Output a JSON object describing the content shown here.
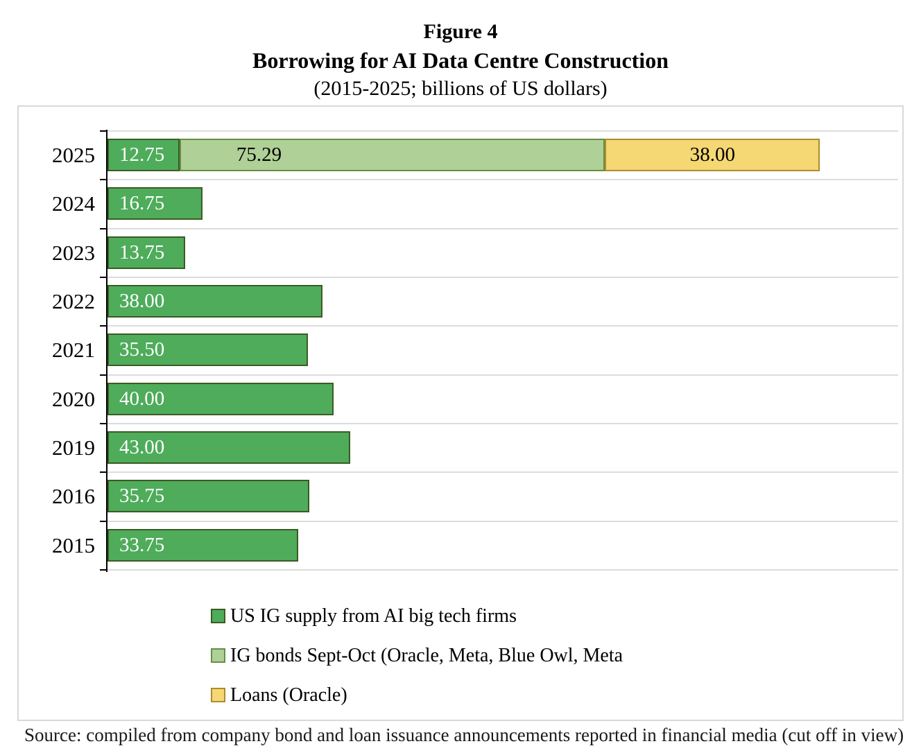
{
  "title": {
    "line1": "Figure 4",
    "line2": "Borrowing for AI Data Centre Construction",
    "line3": "(2015-2025; billions of US dollars)"
  },
  "chart_data": {
    "type": "bar",
    "orientation": "horizontal",
    "stacked": true,
    "categories": [
      "2025",
      "2024",
      "2023",
      "2022",
      "2021",
      "2020",
      "2019",
      "2016",
      "2015"
    ],
    "series": [
      {
        "name": "US IG supply from AI big tech firms",
        "color": "#4EAC5B",
        "border_color": "#3B5B23",
        "label_color": "#ffffff",
        "values": [
          12.75,
          16.75,
          13.75,
          38.0,
          35.5,
          40.0,
          43.0,
          35.75,
          33.75
        ]
      },
      {
        "name": "IG bonds Sept-Oct (Oracle, Meta, Blue Owl, Meta",
        "color": "#AFD096",
        "border_color": "#668E47",
        "label_color": "#000000",
        "values": [
          75.29,
          0,
          0,
          0,
          0,
          0,
          0,
          0,
          0
        ]
      },
      {
        "name": "Loans (Oracle)",
        "color": "#F5D773",
        "border_color": "#AD8C2D",
        "label_color": "#000000",
        "values": [
          38.0,
          0,
          0,
          0,
          0,
          0,
          0,
          0,
          0
        ]
      }
    ],
    "value_label_format": "0.00",
    "xlim": [
      0,
      140
    ],
    "gridlines": true,
    "legend_position": "bottom-left",
    "grid_color": "#dcdcdc",
    "box_border_color": "#d9d9d9"
  },
  "footer": {
    "partial_text": "Source: compiled from company bond and loan issuance announcements reported in financial media (cut off in view)"
  }
}
